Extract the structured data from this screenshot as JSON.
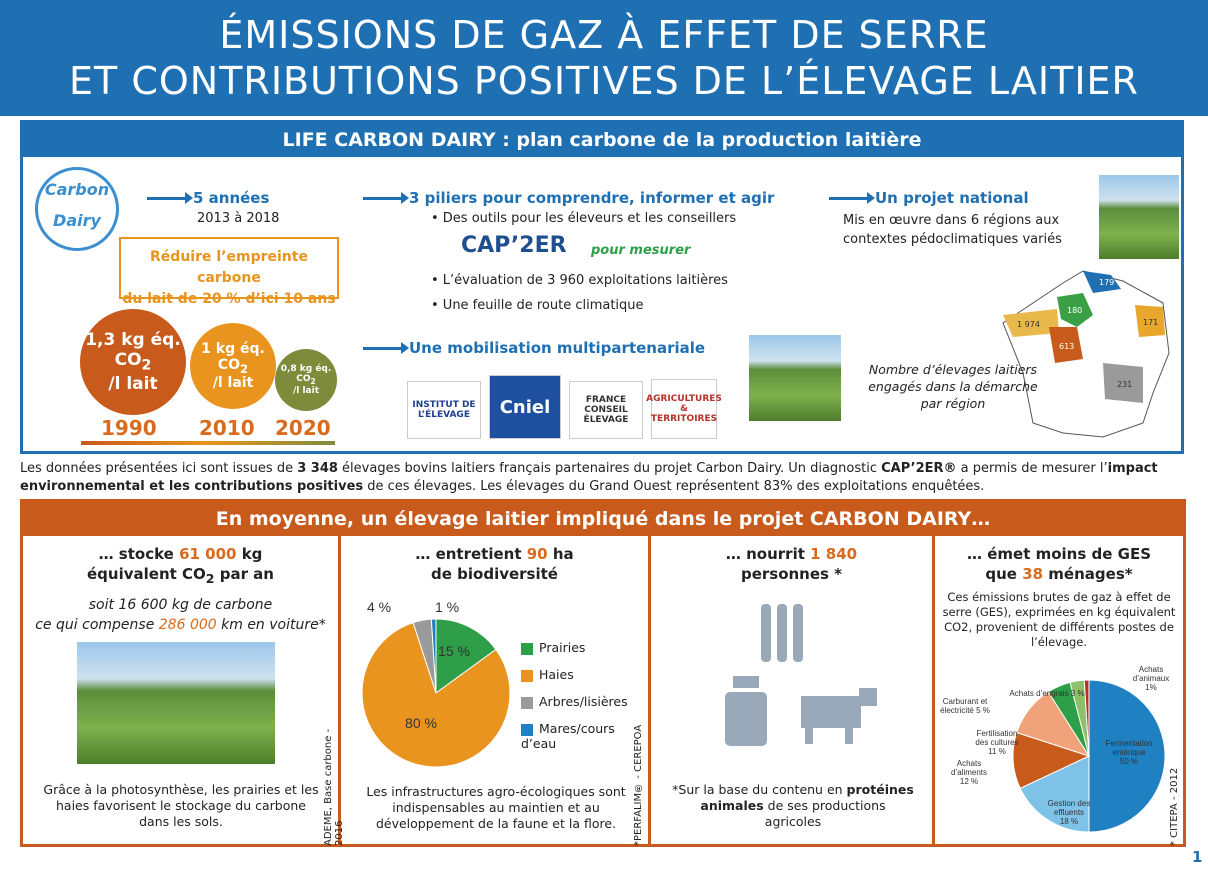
{
  "header": {
    "line1": "ÉMISSIONS DE GAZ À EFFET DE SERRE",
    "line2": "ET CONTRIBUTIONS POSITIVES DE L’ÉLEVAGE LAITIER"
  },
  "life": {
    "title": "LIFE CARBON DAIRY : plan carbone de la production laitière",
    "logo_line1": "Carbon",
    "logo_line2": "Dairy",
    "years_title": "5 années",
    "years_range": "2013 à 2018",
    "goal_line1": "Réduire l’empreinte carbone",
    "goal_line2": "du lait de 20 % d’ici 10 ans",
    "circles": [
      {
        "value": "1,3 kg éq.",
        "unit": "CO",
        "sub": "2",
        "per": "/l lait",
        "year": "1990",
        "color": "#c85a1b"
      },
      {
        "value": "1 kg éq.",
        "unit": "CO",
        "sub": "2",
        "per": "/l lait",
        "year": "2010",
        "color": "#e8941f"
      },
      {
        "value": "0,8 kg éq.",
        "unit": "CO",
        "sub": "2",
        "per": "/l lait",
        "year": "2020",
        "color": "#7d8b3b"
      }
    ],
    "pillars_title": "3 piliers pour comprendre, informer et agir",
    "pillar1": "• Des outils pour les éleveurs et les conseillers",
    "tool_name": "CAP’2ER",
    "tool_tag": "pour mesurer",
    "pillar2": "• L’évaluation de 3 960 exploitations laitières",
    "pillar3": "• Une feuille de route climatique",
    "mobilisation": "Une mobilisation multipartenariale",
    "partners": [
      "INSTITUT DE L’ÉLEVAGE",
      "Cniel",
      "FRANCE CONSEIL ÉLEVAGE",
      "AGRICULTURES & TERRITOIRES"
    ],
    "national_title": "Un projet national",
    "national_line1": "Mis en œuvre dans 6 régions aux",
    "national_line2": "contextes pédoclimatiques variés",
    "map_caption_1": "Nombre d’élevages laitiers",
    "map_caption_2": "engagés dans la démarche",
    "map_caption_3": "par région",
    "regions": [
      {
        "label": "179",
        "color": "#1f6fb3"
      },
      {
        "label": "180",
        "color": "#3aa046"
      },
      {
        "label": "171",
        "color": "#e8a72b"
      },
      {
        "label": "1 974",
        "color": "#e8b84a"
      },
      {
        "label": "613",
        "color": "#c85a1b"
      },
      {
        "label": "231",
        "color": "#9a9a9a"
      }
    ]
  },
  "note": {
    "p1": "Les données présentées ici sont issues de ",
    "b1": "3 348",
    "p2": " élevages bovins laitiers français partenaires du projet Carbon Dairy. Un diagnostic ",
    "b2": "CAP’2ER®",
    "p3": " a permis de mesurer l’",
    "b3": "impact environnemental et les contributions positives",
    "p4": " de ces élevages. Les élevages du Grand Ouest représentent 83% des exploitations enquêtées."
  },
  "avg": {
    "title": "En moyenne, un élevage laitier impliqué dans le projet CARBON DAIRY…",
    "c1": {
      "h_pre": "… stocke ",
      "h_num": "61 000",
      "h_post": " kg",
      "h2": "équivalent CO",
      "h2sub": "2",
      "h2post": " par an",
      "s1": "soit 16 600 kg de carbone",
      "s2_pre": "ce qui compense ",
      "s2_num": "286 000",
      "s2_post": " km en voiture*",
      "body": "Grâce à la photosynthèse, les prairies et les haies favorisent le stockage du carbone dans les sols.",
      "source": "ADEME, Base carbone - 2016"
    },
    "c2": {
      "h_pre": "… entretient ",
      "h_num": "90",
      "h_post": " ha",
      "h2": "de biodiversité",
      "body": "Les infrastructures agro-écologiques sont indispensables au maintien et au développement de la faune et la flore.",
      "source": "*PERFALIM® - CEREPOA"
    },
    "c3": {
      "h_pre": "… nourrit ",
      "h_num": "1 840",
      "h2": "personnes *",
      "body_pre": "*Sur la base du contenu en ",
      "body_b": "protéines animales",
      "body_post": " de ses productions agricoles"
    },
    "c4": {
      "h1": "… émet moins de GES",
      "h2_pre": "que ",
      "h2_num": "38",
      "h2_post": " ménages*",
      "desc": "Ces émissions brutes de gaz à effet de serre (GES), exprimées en kg équivalent CO2, provenient de différents postes de l’élevage.",
      "source": "* CITEPA - 2012"
    }
  },
  "page_number": "1",
  "chart_data": [
    {
      "type": "pie",
      "title": "",
      "series": [
        {
          "name": "Prairies",
          "value": 15,
          "label": "15 %",
          "color": "#2e9e48"
        },
        {
          "name": "Haies",
          "value": 80,
          "label": "80 %",
          "color": "#e8941f"
        },
        {
          "name": "Arbres/lisières",
          "value": 4,
          "label": "4 %",
          "color": "#9a9a9a"
        },
        {
          "name": "Mares/cours d’eau",
          "value": 1,
          "label": "1 %",
          "color": "#1f80c2"
        }
      ]
    },
    {
      "type": "pie",
      "title": "",
      "series": [
        {
          "name": "Fermentation entérique",
          "value": 50,
          "label": "Fermentation\nentérique\n50 %",
          "color": "#1f80c2"
        },
        {
          "name": "Gestion des effluents",
          "value": 18,
          "label": "Gestion des\neffluents\n18 %",
          "color": "#7fc2e8"
        },
        {
          "name": "Achats d’aliments",
          "value": 12,
          "label": "Achats\nd’aliments\n12 %",
          "color": "#c85a1b"
        },
        {
          "name": "Fertilisation des cultures",
          "value": 11,
          "label": "Fertilisation\ndes cultures\n11 %",
          "color": "#f0a27a"
        },
        {
          "name": "Carburant et électricité",
          "value": 5,
          "label": "Carburant et\nélectricité 5 %",
          "color": "#2e9e48"
        },
        {
          "name": "Achats d’engrais",
          "value": 3,
          "label": "Achats d’engrais 3 %",
          "color": "#8dc06b"
        },
        {
          "name": "Achats d’animaux",
          "value": 1,
          "label": "Achats\nd’animaux\n1%",
          "color": "#b5322a"
        }
      ]
    }
  ]
}
